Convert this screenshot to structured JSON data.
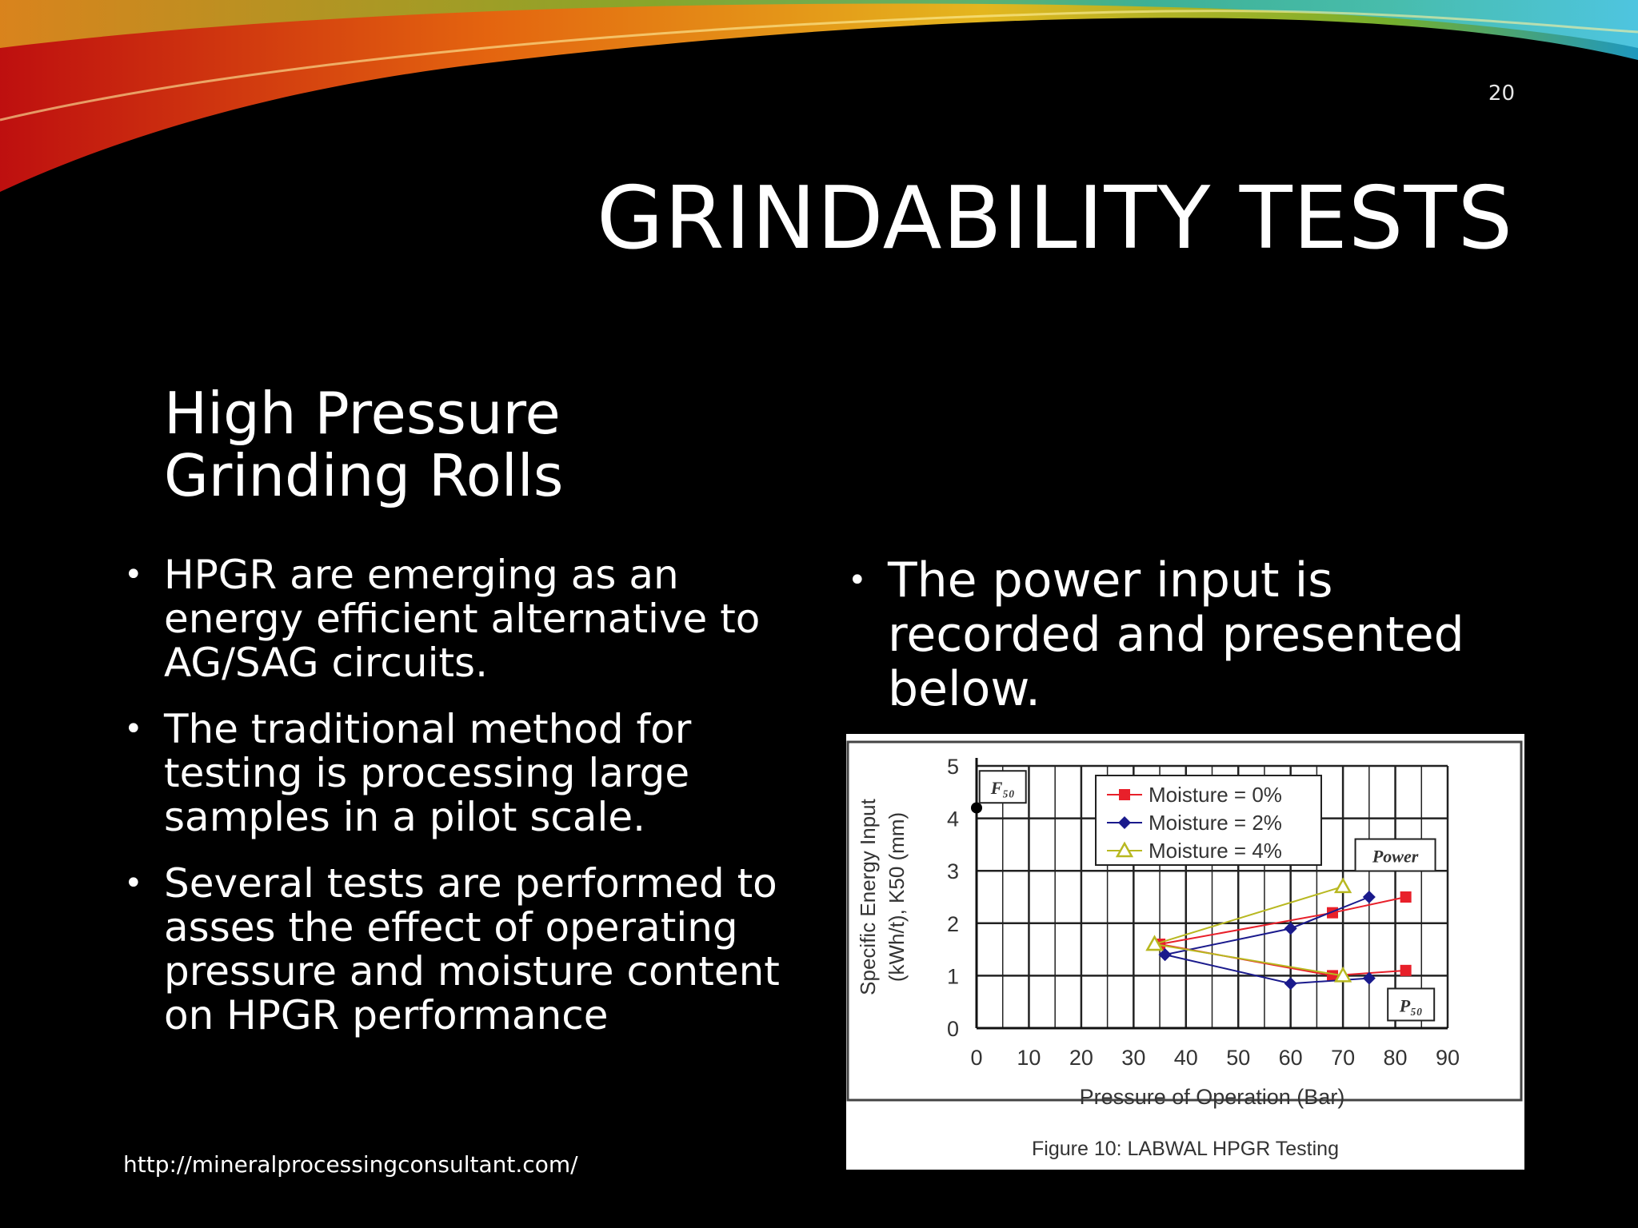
{
  "slide": {
    "number": "20",
    "title": "GRINDABILITY TESTS",
    "subtitle": "High Pressure Grinding Rolls",
    "left_bullets": [
      "HPGR are emerging as an energy efficient alternative to AG/SAG circuits.",
      "The traditional method for testing is processing large samples in a pilot scale.",
      "Several tests are performed to asses the effect of operating pressure and moisture content on HPGR  performance"
    ],
    "right_bullets": [
      "The power input is recorded and presented below."
    ],
    "footer_url": "http://mineralprocessingconsultant.com/",
    "bullet_glyph": "•"
  },
  "colors": {
    "background": "#000000",
    "text": "#ffffff",
    "moisture_0": "#e8202a",
    "moisture_2": "#1a1a8c",
    "moisture_4": "#b8b820"
  },
  "chart_data": {
    "type": "line",
    "caption": "Figure 10: LABWAL HPGR Testing",
    "xlabel": "Pressure of Operation (Bar)",
    "ylabel_line1": "Specific Energy Input",
    "ylabel_line2": "(kWh/t), K50 (mm)",
    "xlim": [
      0,
      90
    ],
    "ylim": [
      0,
      5
    ],
    "xticks": [
      0,
      10,
      20,
      30,
      40,
      50,
      60,
      70,
      80,
      90
    ],
    "yticks": [
      0,
      1,
      2,
      3,
      4,
      5
    ],
    "grid": true,
    "legend_position": "top-center",
    "annotations": [
      {
        "text": "F₅₀",
        "x": 5,
        "y": 4.6
      },
      {
        "text": "Power",
        "x": 80,
        "y": 3.3
      },
      {
        "text": "P₅₀",
        "x": 83,
        "y": 0.45
      }
    ],
    "feed_point": {
      "x": 0,
      "y": 4.2
    },
    "series": [
      {
        "name": "Moisture = 0%",
        "marker": "square",
        "color": "#e8202a",
        "groups": [
          {
            "x": [
              35,
              68,
              82
            ],
            "y": [
              1.6,
              2.2,
              2.5
            ]
          },
          {
            "x": [
              35,
              68,
              82
            ],
            "y": [
              1.6,
              1.0,
              1.1
            ]
          }
        ]
      },
      {
        "name": "Moisture = 2%",
        "marker": "diamond",
        "color": "#1a1a8c",
        "groups": [
          {
            "x": [
              36,
              60,
              75
            ],
            "y": [
              1.4,
              1.9,
              2.5
            ]
          },
          {
            "x": [
              36,
              60,
              75
            ],
            "y": [
              1.4,
              0.85,
              0.95
            ]
          }
        ]
      },
      {
        "name": "Moisture = 4%",
        "marker": "triangle",
        "color": "#b8b820",
        "groups": [
          {
            "x": [
              34,
              70
            ],
            "y": [
              1.6,
              2.7
            ]
          },
          {
            "x": [
              34,
              70
            ],
            "y": [
              1.6,
              1.0
            ]
          }
        ]
      }
    ]
  }
}
